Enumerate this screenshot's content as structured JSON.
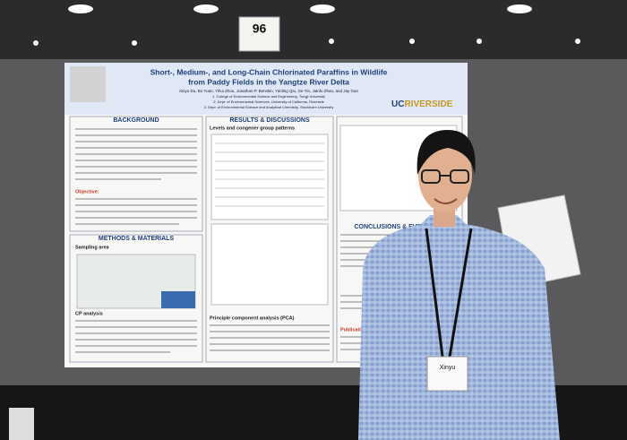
{
  "sign_number": "96",
  "poster": {
    "title_line1": "Short-, Medium-, and Long-Chain Chlorinated Paraffins in Wildlife",
    "title_line2": "from Paddy Fields in the Yangtze River Delta",
    "authors": "Xinyu Du, Bo Yuan, Yihui Zhou, Jonathan P. Benskin, Yanling Qiu, Ge Yin, Jianfu Zhao, and Jay Gan",
    "affiliations": [
      "1. College of Environmental Science and Engineering, Tongji University",
      "2. Dept. of Environmental Sciences, University of California, Riverside",
      "3. Dept. of Environmental Science and Analytical Chemistry, Stockholm University"
    ],
    "logo_uc": "UC",
    "logo_riverside": "RIVERSIDE",
    "background": "BACKGROUND",
    "objective": "Objective:",
    "methods": "METHODS & MATERIALS",
    "sampling_area": "Sampling area",
    "cp_analysis": "CP analysis",
    "results": "RESULTS & DISCUSSIONS",
    "levels": "Levels and congener group patterns",
    "pca": "Principle component analysis (PCA)",
    "conclusions": "CONCLUSIONS & FUTURE",
    "publication": "Publication"
  },
  "badge": {
    "name": "Xinyu"
  }
}
